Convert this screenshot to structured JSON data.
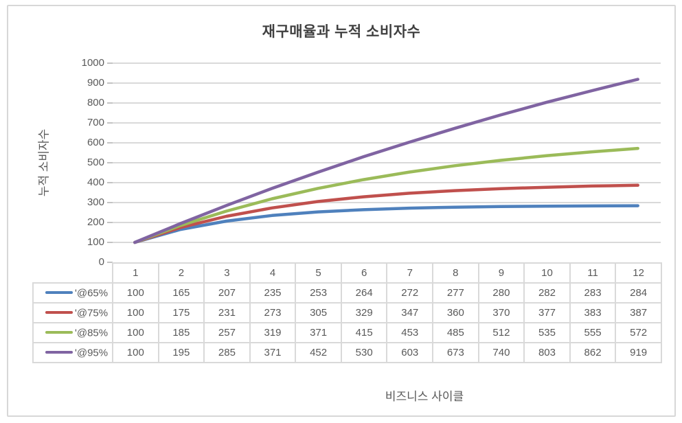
{
  "chart_data": {
    "type": "line",
    "title": "재구매율과 누적 소비자수",
    "xlabel": "비즈니스 사이클",
    "ylabel": "누적 소비자수",
    "categories": [
      "1",
      "2",
      "3",
      "4",
      "5",
      "6",
      "7",
      "8",
      "9",
      "10",
      "11",
      "12"
    ],
    "series": [
      {
        "name": "'@65%",
        "color": "#4F81BD",
        "values": [
          100,
          165,
          207,
          235,
          253,
          264,
          272,
          277,
          280,
          282,
          283,
          284
        ]
      },
      {
        "name": "'@75%",
        "color": "#C0504D",
        "values": [
          100,
          175,
          231,
          273,
          305,
          329,
          347,
          360,
          370,
          377,
          383,
          387
        ]
      },
      {
        "name": "'@85%",
        "color": "#9BBB59",
        "values": [
          100,
          185,
          257,
          319,
          371,
          415,
          453,
          485,
          512,
          535,
          555,
          572
        ]
      },
      {
        "name": "'@95%",
        "color": "#8064A2",
        "values": [
          100,
          195,
          285,
          371,
          452,
          530,
          603,
          673,
          740,
          803,
          862,
          919
        ]
      }
    ],
    "ylim": [
      0,
      1000
    ],
    "y_ticks": [
      0,
      100,
      200,
      300,
      400,
      500,
      600,
      700,
      800,
      900,
      1000
    ],
    "grid": "horizontal-major",
    "legend_position": "data-table-left",
    "gridline_color": "#D9D9D9",
    "title_color": "#404040",
    "axis_text_color": "#595959"
  }
}
